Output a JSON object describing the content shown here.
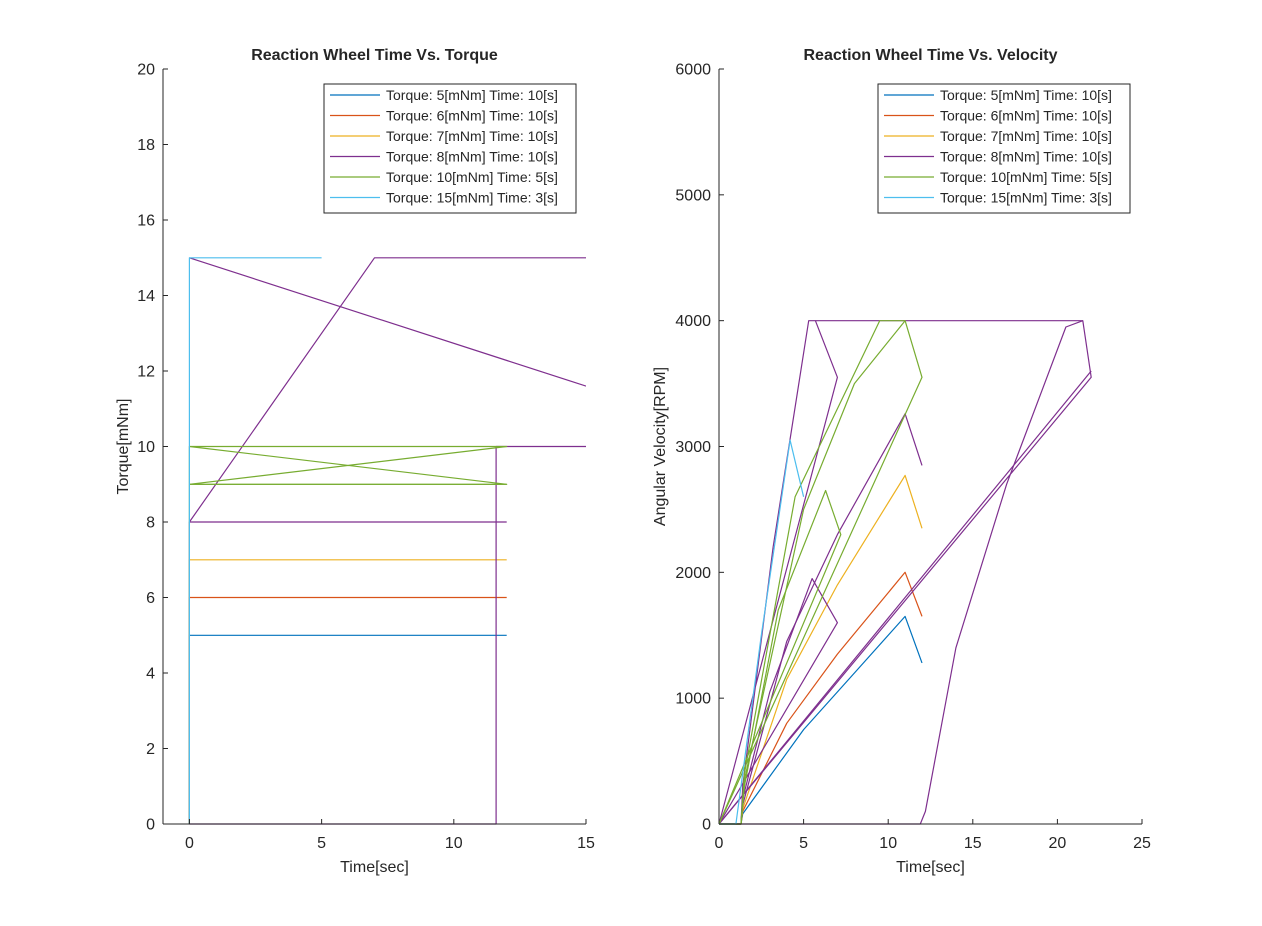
{
  "chart_data": [
    {
      "type": "line",
      "title": "Reaction Wheel Time Vs. Torque",
      "xlabel": "Time[sec]",
      "ylabel": "Torque[mNm]",
      "xlim": [
        -1,
        15
      ],
      "ylim": [
        0,
        20
      ],
      "xticks": [
        0,
        5,
        10,
        15
      ],
      "yticks": [
        0,
        2,
        4,
        6,
        8,
        10,
        12,
        14,
        16,
        18,
        20
      ],
      "grid": false,
      "legend_position": "top-right",
      "series": [
        {
          "name": "Torque: 5[mNm] Time: 10[s]",
          "color": "#0072BD",
          "segments": [
            [
              [
                0,
                0
              ],
              [
                0,
                5
              ],
              [
                12,
                5
              ]
            ]
          ]
        },
        {
          "name": "Torque: 6[mNm] Time: 10[s]",
          "color": "#D95319",
          "segments": [
            [
              [
                0,
                0
              ],
              [
                0,
                6
              ],
              [
                12,
                6
              ]
            ]
          ]
        },
        {
          "name": "Torque: 7[mNm] Time: 10[s]",
          "color": "#EDB120",
          "segments": [
            [
              [
                0,
                0
              ],
              [
                0,
                7
              ],
              [
                12,
                7
              ]
            ]
          ]
        },
        {
          "name": "Torque: 8[mNm] Time: 10[s]",
          "color": "#7E2F8E",
          "segments": [
            [
              [
                0,
                0
              ],
              [
                0,
                8
              ],
              [
                12,
                8
              ]
            ],
            [
              [
                0,
                8
              ],
              [
                7,
                15
              ],
              [
                15,
                15
              ]
            ],
            [
              [
                0,
                15
              ],
              [
                15,
                11.6
              ]
            ],
            [
              [
                0,
                0
              ],
              [
                11.6,
                0
              ],
              [
                11.6,
                10
              ],
              [
                15,
                10
              ]
            ]
          ]
        },
        {
          "name": "Torque: 10[mNm] Time: 5[s]",
          "color": "#77AC30",
          "segments": [
            [
              [
                0,
                0
              ],
              [
                0,
                10
              ],
              [
                12,
                9
              ],
              [
                0,
                9
              ],
              [
                12,
                10
              ],
              [
                0,
                10
              ]
            ],
            [
              [
                0,
                9
              ],
              [
                12,
                9
              ]
            ]
          ]
        },
        {
          "name": "Torque: 15[mNm] Time: 3[s]",
          "color": "#4DBEEE",
          "segments": [
            [
              [
                0,
                0
              ],
              [
                0,
                15
              ],
              [
                5,
                15
              ]
            ]
          ]
        }
      ]
    },
    {
      "type": "line",
      "title": "Reaction Wheel Time Vs. Velocity",
      "xlabel": "Time[sec]",
      "ylabel": "Angular Velocity[RPM]",
      "xlim": [
        0,
        25
      ],
      "ylim": [
        0,
        6000
      ],
      "xticks": [
        0,
        5,
        10,
        15,
        20,
        25
      ],
      "yticks": [
        0,
        1000,
        2000,
        3000,
        4000,
        5000,
        6000
      ],
      "grid": false,
      "legend_position": "top-right",
      "series": [
        {
          "name": "Torque: 5[mNm] Time: 10[s]",
          "color": "#0072BD",
          "segments": [
            [
              [
                0,
                0
              ],
              [
                1.3,
                0
              ],
              [
                1.4,
                80
              ],
              [
                5,
                750
              ],
              [
                8,
                1200
              ],
              [
                11,
                1650
              ],
              [
                12,
                1280
              ]
            ]
          ]
        },
        {
          "name": "Torque: 6[mNm] Time: 10[s]",
          "color": "#D95319",
          "segments": [
            [
              [
                0,
                0
              ],
              [
                1.3,
                0
              ],
              [
                1.4,
                100
              ],
              [
                4,
                800
              ],
              [
                7,
                1350
              ],
              [
                11,
                2000
              ],
              [
                12,
                1650
              ]
            ]
          ]
        },
        {
          "name": "Torque: 7[mNm] Time: 10[s]",
          "color": "#EDB120",
          "segments": [
            [
              [
                0,
                0
              ],
              [
                1.3,
                0
              ],
              [
                1.4,
                120
              ],
              [
                4,
                1150
              ],
              [
                7,
                1900
              ],
              [
                11,
                2770
              ],
              [
                12,
                2350
              ]
            ]
          ]
        },
        {
          "name": "Torque: 8[mNm] Time: 10[s]",
          "color": "#7E2F8E",
          "segments": [
            [
              [
                0,
                0
              ],
              [
                1.3,
                0
              ],
              [
                1.4,
                150
              ],
              [
                4,
                1450
              ],
              [
                7,
                2300
              ],
              [
                11,
                3260
              ],
              [
                12,
                2850
              ]
            ],
            [
              [
                0,
                0
              ],
              [
                1.3,
                0
              ],
              [
                1.4,
                200
              ],
              [
                3,
                1050
              ],
              [
                5.5,
                1950
              ],
              [
                7,
                1600
              ],
              [
                0,
                0
              ]
            ],
            [
              [
                0,
                0
              ],
              [
                1.3,
                0
              ],
              [
                1.4,
                300
              ],
              [
                3.2,
                2200
              ],
              [
                5.3,
                4000
              ],
              [
                5.7,
                4000
              ],
              [
                7,
                3550
              ],
              [
                0,
                0
              ]
            ],
            [
              [
                0,
                0
              ],
              [
                11.9,
                0
              ],
              [
                12.2,
                100
              ],
              [
                14,
                1400
              ],
              [
                17,
                2700
              ],
              [
                20.5,
                3950
              ],
              [
                21.5,
                4000
              ],
              [
                22,
                3550
              ],
              [
                0,
                0
              ]
            ],
            [
              [
                5.7,
                4000
              ],
              [
                21.5,
                4000
              ]
            ],
            [
              [
                0,
                0
              ],
              [
                22,
                3600
              ]
            ]
          ]
        },
        {
          "name": "Torque: 10[mNm] Time: 5[s]",
          "color": "#77AC30",
          "segments": [
            [
              [
                0,
                0
              ],
              [
                1.3,
                0
              ],
              [
                1.5,
                300
              ],
              [
                3.5,
                1700
              ],
              [
                6.3,
                2650
              ],
              [
                7.2,
                2300
              ],
              [
                0,
                0
              ]
            ],
            [
              [
                0,
                0
              ],
              [
                1.3,
                0
              ],
              [
                1.5,
                400
              ],
              [
                4.5,
                2600
              ],
              [
                9.5,
                4000
              ],
              [
                11,
                4000
              ],
              [
                12,
                3550
              ],
              [
                0,
                0
              ]
            ],
            [
              [
                0,
                0
              ],
              [
                1.3,
                0
              ],
              [
                1.5,
                350
              ],
              [
                5,
                2500
              ],
              [
                8,
                3500
              ],
              [
                11,
                4000
              ]
            ]
          ]
        },
        {
          "name": "Torque: 15[mNm] Time: 3[s]",
          "color": "#4DBEEE",
          "segments": [
            [
              [
                0,
                0
              ],
              [
                1.0,
                0
              ],
              [
                2.5,
                1500
              ],
              [
                4.2,
                3050
              ],
              [
                5,
                2600
              ]
            ]
          ]
        }
      ]
    }
  ]
}
